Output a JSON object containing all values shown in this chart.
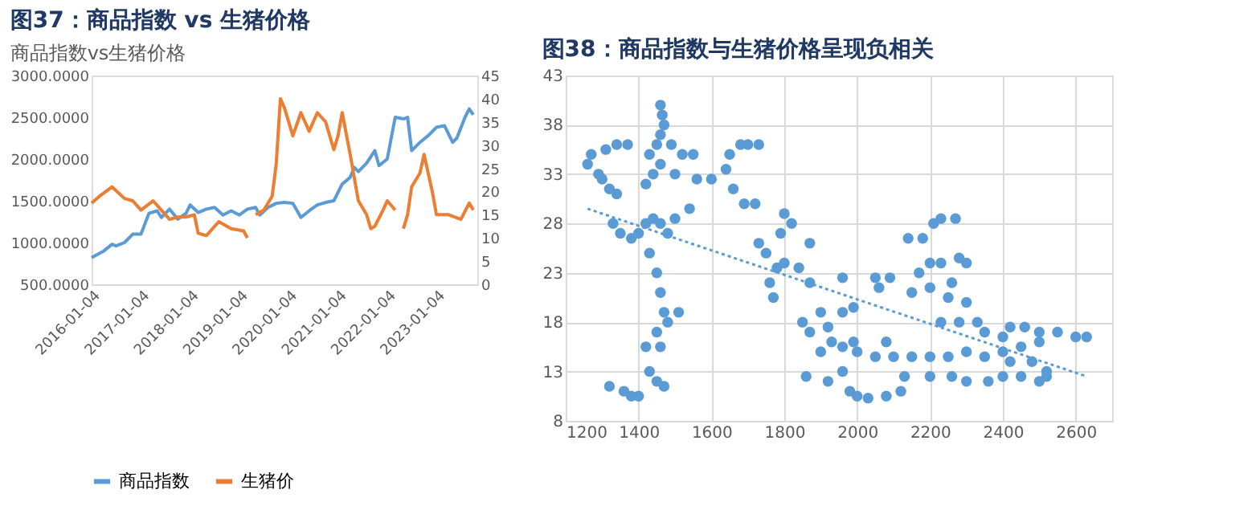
{
  "chart_data": [
    {
      "type": "line",
      "title": "图37：商品指数 vs 生猪价格",
      "subtitle": "商品指数vs生猪价格",
      "legend": "bottom",
      "xlim": [
        "2016-01-01",
        "2023-10-31"
      ],
      "xticks": [
        "2016-01-04",
        "2017-01-04",
        "2018-01-04",
        "2019-01-04",
        "2020-01-04",
        "2021-01-04",
        "2022-01-04",
        "2023-01-04"
      ],
      "ylim": [
        500,
        3000
      ],
      "yticks": [
        {
          "value": 500,
          "label": "500.0000"
        },
        {
          "value": 1000,
          "label": "1000.0000"
        },
        {
          "value": 1500,
          "label": "1500.0000"
        },
        {
          "value": 2000,
          "label": "2000.0000"
        },
        {
          "value": 2500,
          "label": "2500.0000"
        },
        {
          "value": 3000,
          "label": "3000.0000"
        }
      ],
      "y2lim": [
        0,
        45
      ],
      "y2ticks": [
        0,
        5,
        10,
        15,
        20,
        25,
        30,
        35,
        40,
        45
      ],
      "series": [
        {
          "name": "商品指数",
          "color": "#5b9bd5",
          "x": [
            "2016-01",
            "2016-04",
            "2016-06",
            "2016-07",
            "2016-09",
            "2016-11",
            "2017-01",
            "2017-03",
            "2017-05",
            "2017-06",
            "2017-08",
            "2017-10",
            "2017-12",
            "2018-01",
            "2018-03",
            "2018-05",
            "2018-07",
            "2018-09",
            "2018-11",
            "2019-01",
            "2019-03",
            "2019-05",
            "2019-06",
            "2019-08",
            "2019-10",
            "2019-12",
            "2020-02",
            "2020-04",
            "2020-06",
            "2020-08",
            "2020-10",
            "2020-12",
            "2021-02",
            "2021-04",
            "2021-05",
            "2021-06",
            "2021-08",
            "2021-10",
            "2021-11",
            "2022-01",
            "2022-03",
            "2022-05",
            "2022-06",
            "2022-07",
            "2022-09",
            "2022-11",
            "2023-01",
            "2023-03",
            "2023-05",
            "2023-06",
            "2023-08",
            "2023-09",
            "2023-10"
          ],
          "values": [
            820,
            900,
            980,
            960,
            1000,
            1100,
            1100,
            1350,
            1380,
            1300,
            1400,
            1280,
            1350,
            1450,
            1360,
            1400,
            1420,
            1330,
            1380,
            1330,
            1400,
            1420,
            1330,
            1420,
            1470,
            1480,
            1470,
            1300,
            1380,
            1450,
            1480,
            1500,
            1700,
            1780,
            1900,
            1850,
            1950,
            2100,
            1920,
            2000,
            2500,
            2480,
            2500,
            2100,
            2200,
            2280,
            2380,
            2400,
            2200,
            2250,
            2500,
            2600,
            2530
          ]
        },
        {
          "name": "生猪价",
          "color": "#ed7d31",
          "axis": "y2",
          "x": [
            "2016-01",
            "2016-03",
            "2016-06",
            "2016-09",
            "2016-11",
            "2017-01",
            "2017-04",
            "2017-06",
            "2017-08",
            "2017-10",
            "2017-12",
            "2018-02",
            "2018-03",
            "2018-05",
            "2018-08",
            "2018-11",
            "2019-02",
            "2019-03",
            "2019-04",
            "2019-05",
            "2019-07",
            "2019-09",
            "2019-10",
            "2019-11",
            "2019-12",
            "2020-02",
            "2020-04",
            "2020-06",
            "2020-08",
            "2020-10",
            "2020-12",
            "2021-01",
            "2021-02",
            "2021-04",
            "2021-06",
            "2021-08",
            "2021-09",
            "2021-10",
            "2021-12",
            "2022-01",
            "2022-03",
            "2022-04",
            "2022-05",
            "2022-06",
            "2022-07",
            "2022-09",
            "2022-10",
            "2022-12",
            "2023-01",
            "2023-04",
            "2023-07",
            "2023-09",
            "2023-10"
          ],
          "values": [
            17.5,
            19,
            21,
            18.5,
            18,
            16,
            18,
            16,
            14,
            14.5,
            14.5,
            15,
            11,
            10.5,
            13.5,
            12,
            11.5,
            10,
            null,
            15,
            16,
            19,
            26,
            40,
            38,
            32,
            37,
            33,
            37,
            35,
            29,
            32,
            37,
            28,
            18,
            15,
            12,
            12.5,
            16,
            18,
            16,
            null,
            12,
            15,
            21,
            24,
            28,
            20,
            15,
            15,
            14,
            17.5,
            16
          ]
        }
      ]
    },
    {
      "type": "scatter",
      "title": "图38：商品指数与生猪价格呈现负相关",
      "grid": true,
      "marker": "circle",
      "xlim": [
        1200,
        2700
      ],
      "xticks": [
        1200,
        1400,
        1600,
        1800,
        2000,
        2200,
        2400,
        2600
      ],
      "ylim": [
        8,
        43
      ],
      "yticks": [
        8,
        13,
        18,
        23,
        28,
        33,
        38,
        43
      ],
      "series": [
        {
          "color": "#5b9bd5",
          "x": [
            1260,
            1270,
            1290,
            1300,
            1320,
            1340,
            1310,
            1340,
            1370,
            1330,
            1350,
            1380,
            1400,
            1420,
            1440,
            1460,
            1480,
            1500,
            1540,
            1420,
            1440,
            1460,
            1430,
            1450,
            1460,
            1470,
            1460,
            1465,
            1490,
            1520,
            1550,
            1500,
            1560,
            1600,
            1640,
            1650,
            1680,
            1700,
            1730,
            1660,
            1690,
            1720,
            1430,
            1450,
            1460,
            1470,
            1480,
            1510,
            1450,
            1420,
            1460,
            1430,
            1450,
            1470,
            1320,
            1360,
            1380,
            1400,
            1730,
            1750,
            1760,
            1770,
            1780,
            1790,
            1800,
            1820,
            1800,
            1840,
            1870,
            1870,
            1850,
            1870,
            1900,
            1920,
            1960,
            1990,
            1900,
            1930,
            1960,
            1990,
            1860,
            1920,
            1960,
            1980,
            2000,
            2030,
            1960,
            2050,
            2090,
            2060,
            2080,
            2000,
            2050,
            2100,
            2150,
            2200,
            2250,
            2300,
            2080,
            2120,
            2130,
            2200,
            2260,
            2300,
            2360,
            2400,
            2450,
            2500,
            2520,
            2140,
            2180,
            2210,
            2230,
            2270,
            2150,
            2170,
            2200,
            2230,
            2260,
            2280,
            2300,
            2200,
            2250,
            2300,
            2230,
            2280,
            2330,
            2350,
            2400,
            2420,
            2460,
            2500,
            2550,
            2600,
            2630,
            2400,
            2450,
            2500,
            2350,
            2420,
            2480,
            2520
          ],
          "values": [
            34,
            35,
            33,
            32.5,
            31.5,
            31,
            35.5,
            36,
            36,
            28,
            27,
            26.5,
            27,
            28,
            28.5,
            28,
            27,
            28.5,
            29.5,
            32,
            33,
            34,
            35,
            36,
            37,
            38,
            40,
            39,
            36,
            35,
            35,
            33,
            32.5,
            32.5,
            33.5,
            35,
            36,
            36,
            36,
            31.5,
            30,
            30,
            25,
            23,
            21,
            19,
            18,
            19,
            17,
            15.5,
            15.5,
            13,
            12,
            11.5,
            11.5,
            11,
            10.5,
            10.5,
            26,
            25,
            22,
            20.5,
            23.5,
            27,
            29,
            28,
            24,
            23.5,
            22,
            26,
            18,
            17,
            19,
            17.5,
            19,
            19.5,
            15,
            16,
            15.5,
            16,
            12.5,
            12,
            13,
            11,
            10.5,
            10.3,
            22.5,
            22.5,
            22.5,
            21.5,
            16,
            15,
            14.5,
            14.5,
            14.5,
            14.5,
            14.5,
            15,
            10.5,
            11,
            12.5,
            12.5,
            12.5,
            12,
            12,
            12.5,
            12.5,
            12,
            12.5,
            26.5,
            26.5,
            28,
            28.5,
            28.5,
            21,
            23,
            24,
            24,
            22,
            24.5,
            24,
            21.5,
            20.5,
            20,
            18,
            18,
            18,
            17,
            16.5,
            17.5,
            17.5,
            17,
            17,
            16.5,
            16.5,
            15,
            15.5,
            16,
            14.5,
            14,
            14,
            13
          ]
        },
        {
          "type": "line",
          "color": "#5b9bd5",
          "line_style": "dotted",
          "marker": "none",
          "x": [
            1260,
            2630
          ],
          "values": [
            29.5,
            12.5
          ]
        }
      ]
    }
  ]
}
